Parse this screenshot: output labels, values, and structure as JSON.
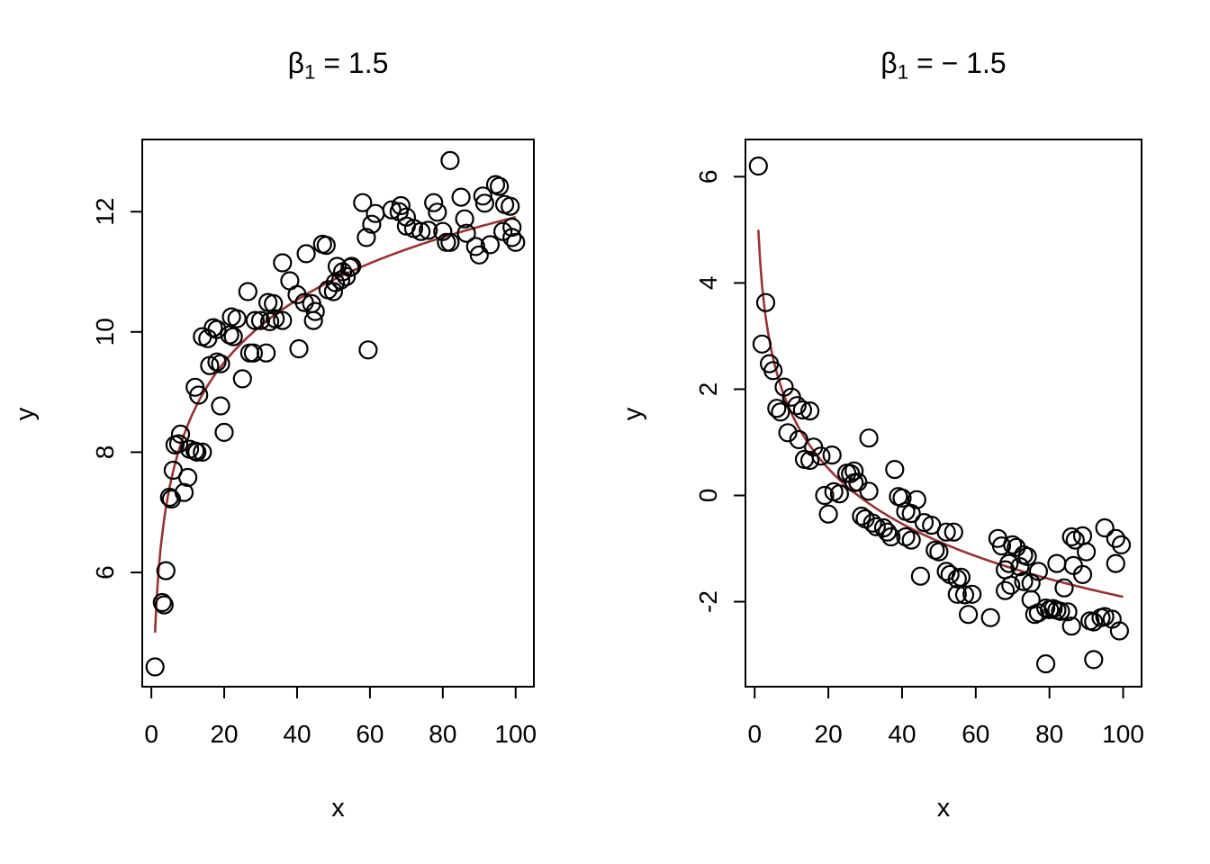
{
  "figure": {
    "background": "#ffffff",
    "point_color": "#000000",
    "curve_color": "#993333",
    "axis_color": "#000000"
  },
  "chart_data": [
    {
      "type": "scatter",
      "title": {
        "symbol": "β",
        "subscript": "1",
        "rest": " = 1.5"
      },
      "xlabel": "x",
      "ylabel": "y",
      "xlim": [
        -2.5,
        105
      ],
      "ylim": [
        4.1,
        13.2
      ],
      "xticks": [
        0,
        20,
        40,
        60,
        80,
        100
      ],
      "yticks": [
        6,
        8,
        10,
        12
      ],
      "grid": false,
      "legend": null,
      "curve": {
        "model": "y = 5 + 1.5*ln(x)",
        "b0": 5,
        "b1": 1.5,
        "x_from": 1,
        "x_to": 100
      },
      "points": [
        [
          1,
          4.43
        ],
        [
          3,
          5.5
        ],
        [
          3.5,
          5.46
        ],
        [
          4,
          6.03
        ],
        [
          5,
          7.25
        ],
        [
          5.5,
          7.22
        ],
        [
          6,
          7.7
        ],
        [
          6.5,
          8.12
        ],
        [
          7.5,
          8.14
        ],
        [
          8,
          8.3
        ],
        [
          9,
          7.33
        ],
        [
          10,
          7.58
        ],
        [
          10.5,
          8.05
        ],
        [
          12,
          8.02
        ],
        [
          12,
          9.08
        ],
        [
          13,
          8.95
        ],
        [
          12.5,
          8.0
        ],
        [
          14,
          8.0
        ],
        [
          14,
          9.92
        ],
        [
          15.5,
          9.89
        ],
        [
          16,
          9.44
        ],
        [
          17,
          10.07
        ],
        [
          18,
          10.04
        ],
        [
          18,
          9.5
        ],
        [
          19,
          9.47
        ],
        [
          19,
          8.77
        ],
        [
          20,
          8.33
        ],
        [
          21.5,
          9.95
        ],
        [
          22,
          10.25
        ],
        [
          22.5,
          9.92
        ],
        [
          23.5,
          10.22
        ],
        [
          25,
          9.22
        ],
        [
          26.5,
          10.67
        ],
        [
          27,
          9.65
        ],
        [
          28,
          9.65
        ],
        [
          28.5,
          10.19
        ],
        [
          30,
          10.19
        ],
        [
          31.5,
          9.65
        ],
        [
          32,
          10.49
        ],
        [
          32.5,
          10.17
        ],
        [
          33.5,
          10.47
        ],
        [
          34,
          10.22
        ],
        [
          36,
          10.19
        ],
        [
          36,
          11.15
        ],
        [
          38,
          10.85
        ],
        [
          40,
          10.62
        ],
        [
          40.5,
          9.72
        ],
        [
          42,
          10.49
        ],
        [
          42.5,
          11.3
        ],
        [
          44,
          10.47
        ],
        [
          44.5,
          10.19
        ],
        [
          45,
          10.34
        ],
        [
          47,
          11.46
        ],
        [
          48,
          11.44
        ],
        [
          48.5,
          10.7
        ],
        [
          50,
          10.67
        ],
        [
          50.5,
          10.82
        ],
        [
          51,
          11.09
        ],
        [
          52,
          10.86
        ],
        [
          52.5,
          11.0
        ],
        [
          53.5,
          10.92
        ],
        [
          54.5,
          11.07
        ],
        [
          55,
          11.09
        ],
        [
          58,
          12.15
        ],
        [
          59,
          11.57
        ],
        [
          59.5,
          9.7
        ],
        [
          60.5,
          11.79
        ],
        [
          61.5,
          11.97
        ],
        [
          66,
          12.03
        ],
        [
          68,
          12.0
        ],
        [
          68.5,
          12.1
        ],
        [
          70,
          11.91
        ],
        [
          70,
          11.76
        ],
        [
          72,
          11.72
        ],
        [
          74,
          11.67
        ],
        [
          76,
          11.69
        ],
        [
          77.5,
          12.15
        ],
        [
          78.5,
          11.99
        ],
        [
          80,
          11.67
        ],
        [
          81,
          11.49
        ],
        [
          82,
          11.49
        ],
        [
          82,
          12.85
        ],
        [
          85,
          12.24
        ],
        [
          86,
          11.88
        ],
        [
          86.5,
          11.64
        ],
        [
          89,
          11.42
        ],
        [
          90,
          11.28
        ],
        [
          91,
          12.26
        ],
        [
          91.5,
          12.14
        ],
        [
          93,
          11.45
        ],
        [
          94.5,
          12.45
        ],
        [
          95.5,
          12.42
        ],
        [
          96.5,
          11.67
        ],
        [
          97,
          12.12
        ],
        [
          98.5,
          12.09
        ],
        [
          99,
          11.74
        ],
        [
          99,
          11.57
        ],
        [
          100,
          11.49
        ]
      ]
    },
    {
      "type": "scatter",
      "title": {
        "symbol": "β",
        "subscript": "1",
        "rest": " = − 1.5"
      },
      "xlabel": "x",
      "ylabel": "y",
      "xlim": [
        -2.5,
        105
      ],
      "ylim": [
        -3.6,
        6.7
      ],
      "xticks": [
        0,
        20,
        40,
        60,
        80,
        100
      ],
      "yticks": [
        -2,
        0,
        2,
        4,
        6
      ],
      "grid": false,
      "legend": null,
      "curve": {
        "model": "y = 5 - 1.5*ln(x)",
        "b0": 5,
        "b1": -1.5,
        "x_from": 1,
        "x_to": 100
      },
      "points": [
        [
          1,
          6.2
        ],
        [
          2,
          2.85
        ],
        [
          3,
          3.63
        ],
        [
          4,
          2.48
        ],
        [
          5,
          2.35
        ],
        [
          6,
          1.64
        ],
        [
          7,
          1.57
        ],
        [
          8,
          2.04
        ],
        [
          9,
          1.18
        ],
        [
          10,
          1.85
        ],
        [
          11.5,
          1.69
        ],
        [
          12,
          1.05
        ],
        [
          13,
          1.61
        ],
        [
          13.5,
          0.68
        ],
        [
          15,
          1.59
        ],
        [
          15,
          0.66
        ],
        [
          16,
          0.91
        ],
        [
          18,
          0.74
        ],
        [
          19,
          0.0
        ],
        [
          20,
          -0.35
        ],
        [
          21,
          0.76
        ],
        [
          21.5,
          0.07
        ],
        [
          23,
          0.03
        ],
        [
          25,
          0.42
        ],
        [
          26,
          0.41
        ],
        [
          27,
          0.46
        ],
        [
          27,
          0.24
        ],
        [
          28,
          0.25
        ],
        [
          29,
          -0.39
        ],
        [
          30,
          -0.44
        ],
        [
          31,
          1.08
        ],
        [
          31,
          0.08
        ],
        [
          32,
          -0.52
        ],
        [
          33,
          -0.59
        ],
        [
          35,
          -0.61
        ],
        [
          36,
          -0.69
        ],
        [
          37,
          -0.78
        ],
        [
          38,
          0.49
        ],
        [
          39,
          -0.02
        ],
        [
          40,
          -0.05
        ],
        [
          41,
          -0.3
        ],
        [
          41,
          -0.78
        ],
        [
          42.5,
          -0.34
        ],
        [
          42.5,
          -0.84
        ],
        [
          44,
          -0.08
        ],
        [
          45,
          -1.52
        ],
        [
          46,
          -0.51
        ],
        [
          48,
          -0.56
        ],
        [
          49,
          -1.03
        ],
        [
          50,
          -1.06
        ],
        [
          52,
          -0.69
        ],
        [
          52,
          -1.43
        ],
        [
          53,
          -1.49
        ],
        [
          54,
          -0.69
        ],
        [
          55,
          -1.57
        ],
        [
          55,
          -1.86
        ],
        [
          56,
          -1.54
        ],
        [
          57,
          -1.87
        ],
        [
          58,
          -2.24
        ],
        [
          59,
          -1.86
        ],
        [
          64,
          -2.3
        ],
        [
          66,
          -0.81
        ],
        [
          67,
          -0.95
        ],
        [
          68,
          -1.4
        ],
        [
          68,
          -1.79
        ],
        [
          69,
          -1.28
        ],
        [
          69.5,
          -1.69
        ],
        [
          70,
          -0.93
        ],
        [
          71,
          -0.98
        ],
        [
          72,
          -1.34
        ],
        [
          73,
          -1.62
        ],
        [
          73,
          -1.12
        ],
        [
          74,
          -1.15
        ],
        [
          75,
          -1.65
        ],
        [
          75,
          -1.96
        ],
        [
          76,
          -2.24
        ],
        [
          77,
          -2.21
        ],
        [
          77,
          -1.43
        ],
        [
          79,
          -2.12
        ],
        [
          79,
          -3.17
        ],
        [
          80,
          -2.15
        ],
        [
          81,
          -2.13
        ],
        [
          82,
          -1.28
        ],
        [
          82,
          -2.16
        ],
        [
          83,
          -2.18
        ],
        [
          84,
          -1.74
        ],
        [
          85,
          -2.19
        ],
        [
          86,
          -2.46
        ],
        [
          86,
          -0.78
        ],
        [
          86.5,
          -1.32
        ],
        [
          87,
          -0.84
        ],
        [
          89,
          -0.76
        ],
        [
          89,
          -1.49
        ],
        [
          90,
          -1.06
        ],
        [
          91,
          -2.36
        ],
        [
          92,
          -2.38
        ],
        [
          92,
          -3.09
        ],
        [
          94,
          -2.3
        ],
        [
          95,
          -2.28
        ],
        [
          95,
          -0.61
        ],
        [
          97,
          -2.33
        ],
        [
          98,
          -1.28
        ],
        [
          98,
          -0.81
        ],
        [
          99,
          -2.55
        ],
        [
          99.5,
          -0.93
        ]
      ]
    }
  ]
}
